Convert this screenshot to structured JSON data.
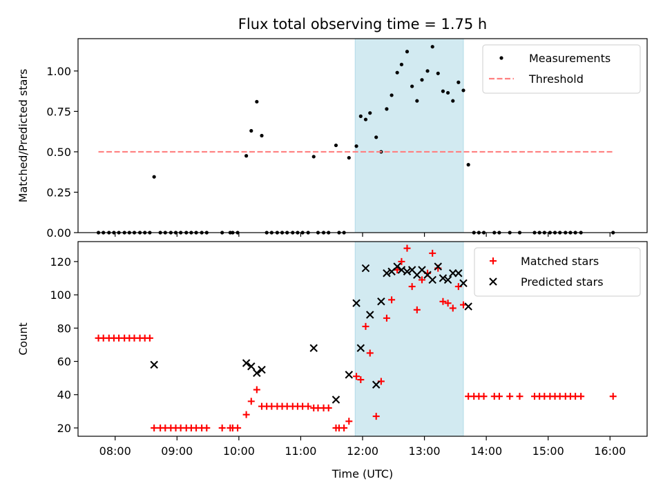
{
  "figure": {
    "title": "Flux total observing time = 1.75 h"
  },
  "chart_data": [
    {
      "type": "scatter",
      "title": "Flux total observing time = 1.75 h",
      "xlabel": "",
      "ylabel": "Matched/Predicted stars",
      "xlim": [
        7.4,
        16.6
      ],
      "ylim": [
        0,
        1.2
      ],
      "yticks": [
        0,
        0.25,
        0.5,
        0.75,
        1.0
      ],
      "ytick_labels": [
        "0.00",
        "0.25",
        "0.50",
        "0.75",
        "1.00"
      ],
      "xticks": [
        8,
        9,
        10,
        11,
        12,
        13,
        14,
        15,
        16
      ],
      "span": [
        11.88,
        13.63
      ],
      "span_color": "#add8e6",
      "legend": "top-right",
      "series": [
        {
          "name": "Measurements",
          "marker": "dot",
          "color": "#000000",
          "points": [
            [
              7.73,
              0
            ],
            [
              7.81,
              0
            ],
            [
              7.9,
              0
            ],
            [
              7.98,
              0
            ],
            [
              8.06,
              0
            ],
            [
              8.15,
              0
            ],
            [
              8.23,
              0
            ],
            [
              8.31,
              0
            ],
            [
              8.4,
              0
            ],
            [
              8.48,
              0
            ],
            [
              8.56,
              0
            ],
            [
              8.63,
              0.345
            ],
            [
              8.73,
              0
            ],
            [
              8.81,
              0
            ],
            [
              8.9,
              0
            ],
            [
              8.98,
              0
            ],
            [
              9.06,
              0
            ],
            [
              9.15,
              0
            ],
            [
              9.23,
              0
            ],
            [
              9.31,
              0
            ],
            [
              9.4,
              0
            ],
            [
              9.48,
              0
            ],
            [
              9.73,
              0
            ],
            [
              9.86,
              0
            ],
            [
              9.9,
              0
            ],
            [
              9.98,
              0
            ],
            [
              10.12,
              0.475
            ],
            [
              10.2,
              0.63
            ],
            [
              10.29,
              0.81
            ],
            [
              10.37,
              0.6
            ],
            [
              10.45,
              0
            ],
            [
              10.53,
              0
            ],
            [
              10.62,
              0
            ],
            [
              10.7,
              0
            ],
            [
              10.78,
              0
            ],
            [
              10.87,
              0
            ],
            [
              10.95,
              0
            ],
            [
              11.03,
              0
            ],
            [
              11.12,
              0
            ],
            [
              11.21,
              0.47
            ],
            [
              11.28,
              0
            ],
            [
              11.37,
              0
            ],
            [
              11.45,
              0
            ],
            [
              11.57,
              0.54
            ],
            [
              11.62,
              0
            ],
            [
              11.7,
              0
            ],
            [
              11.78,
              0.463
            ],
            [
              11.9,
              0.535
            ],
            [
              11.97,
              0.72
            ],
            [
              12.05,
              0.7
            ],
            [
              12.12,
              0.74
            ],
            [
              12.22,
              0.59
            ],
            [
              12.3,
              0.5
            ],
            [
              12.39,
              0.765
            ],
            [
              12.47,
              0.85
            ],
            [
              12.56,
              0.99
            ],
            [
              12.63,
              1.04
            ],
            [
              12.72,
              1.12
            ],
            [
              12.8,
              0.905
            ],
            [
              12.88,
              0.815
            ],
            [
              12.96,
              0.945
            ],
            [
              13.05,
              1.0
            ],
            [
              13.13,
              1.15
            ],
            [
              13.22,
              0.985
            ],
            [
              13.3,
              0.875
            ],
            [
              13.38,
              0.865
            ],
            [
              13.46,
              0.815
            ],
            [
              13.55,
              0.93
            ],
            [
              13.63,
              0.88
            ],
            [
              13.71,
              0.42
            ],
            [
              13.8,
              0
            ],
            [
              13.88,
              0
            ],
            [
              13.96,
              0
            ],
            [
              14.13,
              0
            ],
            [
              14.21,
              0
            ],
            [
              14.38,
              0
            ],
            [
              14.54,
              0
            ],
            [
              14.78,
              0
            ],
            [
              14.86,
              0
            ],
            [
              14.94,
              0
            ],
            [
              15.03,
              0
            ],
            [
              15.11,
              0
            ],
            [
              15.19,
              0
            ],
            [
              15.28,
              0
            ],
            [
              15.36,
              0
            ],
            [
              15.44,
              0
            ],
            [
              15.53,
              0
            ],
            [
              16.05,
              0
            ]
          ]
        },
        {
          "name": "Threshold",
          "marker": "dashed-line",
          "color": "#ff7f7f",
          "points": [
            [
              7.73,
              0.5
            ],
            [
              16.05,
              0.5
            ]
          ]
        }
      ]
    },
    {
      "type": "scatter",
      "title": "",
      "xlabel": "Time (UTC)",
      "ylabel": "Count",
      "xlim": [
        7.4,
        16.6
      ],
      "ylim": [
        15,
        132
      ],
      "yticks": [
        20,
        40,
        60,
        80,
        100,
        120
      ],
      "xticks": [
        8,
        9,
        10,
        11,
        12,
        13,
        14,
        15,
        16
      ],
      "xtick_labels": [
        "08:00",
        "09:00",
        "10:00",
        "11:00",
        "12:00",
        "13:00",
        "14:00",
        "15:00",
        "16:00"
      ],
      "span": [
        11.88,
        13.63
      ],
      "span_color": "#add8e6",
      "legend": "top-right",
      "series": [
        {
          "name": "Matched stars",
          "marker": "plus",
          "color": "#ff0000",
          "points": [
            [
              7.73,
              74
            ],
            [
              7.81,
              74
            ],
            [
              7.9,
              74
            ],
            [
              7.98,
              74
            ],
            [
              8.06,
              74
            ],
            [
              8.15,
              74
            ],
            [
              8.23,
              74
            ],
            [
              8.31,
              74
            ],
            [
              8.4,
              74
            ],
            [
              8.48,
              74
            ],
            [
              8.56,
              74
            ],
            [
              8.63,
              20
            ],
            [
              8.73,
              20
            ],
            [
              8.81,
              20
            ],
            [
              8.9,
              20
            ],
            [
              8.98,
              20
            ],
            [
              9.06,
              20
            ],
            [
              9.15,
              20
            ],
            [
              9.23,
              20
            ],
            [
              9.31,
              20
            ],
            [
              9.4,
              20
            ],
            [
              9.48,
              20
            ],
            [
              9.73,
              20
            ],
            [
              9.86,
              20
            ],
            [
              9.9,
              20
            ],
            [
              9.98,
              20
            ],
            [
              10.12,
              28
            ],
            [
              10.2,
              36
            ],
            [
              10.29,
              43
            ],
            [
              10.37,
              33
            ],
            [
              10.45,
              33
            ],
            [
              10.53,
              33
            ],
            [
              10.62,
              33
            ],
            [
              10.7,
              33
            ],
            [
              10.78,
              33
            ],
            [
              10.87,
              33
            ],
            [
              10.95,
              33
            ],
            [
              11.03,
              33
            ],
            [
              11.12,
              33
            ],
            [
              11.21,
              32
            ],
            [
              11.28,
              32
            ],
            [
              11.37,
              32
            ],
            [
              11.45,
              32
            ],
            [
              11.57,
              20
            ],
            [
              11.62,
              20
            ],
            [
              11.7,
              20
            ],
            [
              11.78,
              24
            ],
            [
              11.9,
              51
            ],
            [
              11.97,
              49
            ],
            [
              12.05,
              81
            ],
            [
              12.12,
              65
            ],
            [
              12.22,
              27
            ],
            [
              12.3,
              48
            ],
            [
              12.39,
              86
            ],
            [
              12.47,
              97
            ],
            [
              12.56,
              115
            ],
            [
              12.63,
              120
            ],
            [
              12.72,
              128
            ],
            [
              12.8,
              105
            ],
            [
              12.88,
              91
            ],
            [
              12.96,
              109
            ],
            [
              13.05,
              113
            ],
            [
              13.13,
              125
            ],
            [
              13.22,
              116
            ],
            [
              13.3,
              96
            ],
            [
              13.38,
              95
            ],
            [
              13.46,
              92
            ],
            [
              13.55,
              105
            ],
            [
              13.63,
              94
            ],
            [
              13.71,
              39
            ],
            [
              13.8,
              39
            ],
            [
              13.88,
              39
            ],
            [
              13.96,
              39
            ],
            [
              14.13,
              39
            ],
            [
              14.21,
              39
            ],
            [
              14.38,
              39
            ],
            [
              14.54,
              39
            ],
            [
              14.78,
              39
            ],
            [
              14.86,
              39
            ],
            [
              14.94,
              39
            ],
            [
              15.03,
              39
            ],
            [
              15.11,
              39
            ],
            [
              15.19,
              39
            ],
            [
              15.28,
              39
            ],
            [
              15.36,
              39
            ],
            [
              15.44,
              39
            ],
            [
              15.53,
              39
            ],
            [
              16.05,
              39
            ]
          ]
        },
        {
          "name": "Predicted stars",
          "marker": "x",
          "color": "#000000",
          "points": [
            [
              8.63,
              58
            ],
            [
              10.12,
              59
            ],
            [
              10.2,
              57
            ],
            [
              10.29,
              53
            ],
            [
              10.37,
              55
            ],
            [
              11.21,
              68
            ],
            [
              11.57,
              37
            ],
            [
              11.78,
              52
            ],
            [
              11.9,
              95
            ],
            [
              11.97,
              68
            ],
            [
              12.05,
              116
            ],
            [
              12.12,
              88
            ],
            [
              12.22,
              46
            ],
            [
              12.3,
              96
            ],
            [
              12.39,
              113
            ],
            [
              12.47,
              114
            ],
            [
              12.56,
              117
            ],
            [
              12.63,
              115
            ],
            [
              12.72,
              114
            ],
            [
              12.8,
              115
            ],
            [
              12.88,
              112
            ],
            [
              12.96,
              115
            ],
            [
              13.05,
              112
            ],
            [
              13.13,
              109
            ],
            [
              13.22,
              117
            ],
            [
              13.3,
              110
            ],
            [
              13.38,
              109
            ],
            [
              13.46,
              113
            ],
            [
              13.55,
              113
            ],
            [
              13.63,
              107
            ],
            [
              13.71,
              93
            ]
          ]
        }
      ]
    }
  ]
}
